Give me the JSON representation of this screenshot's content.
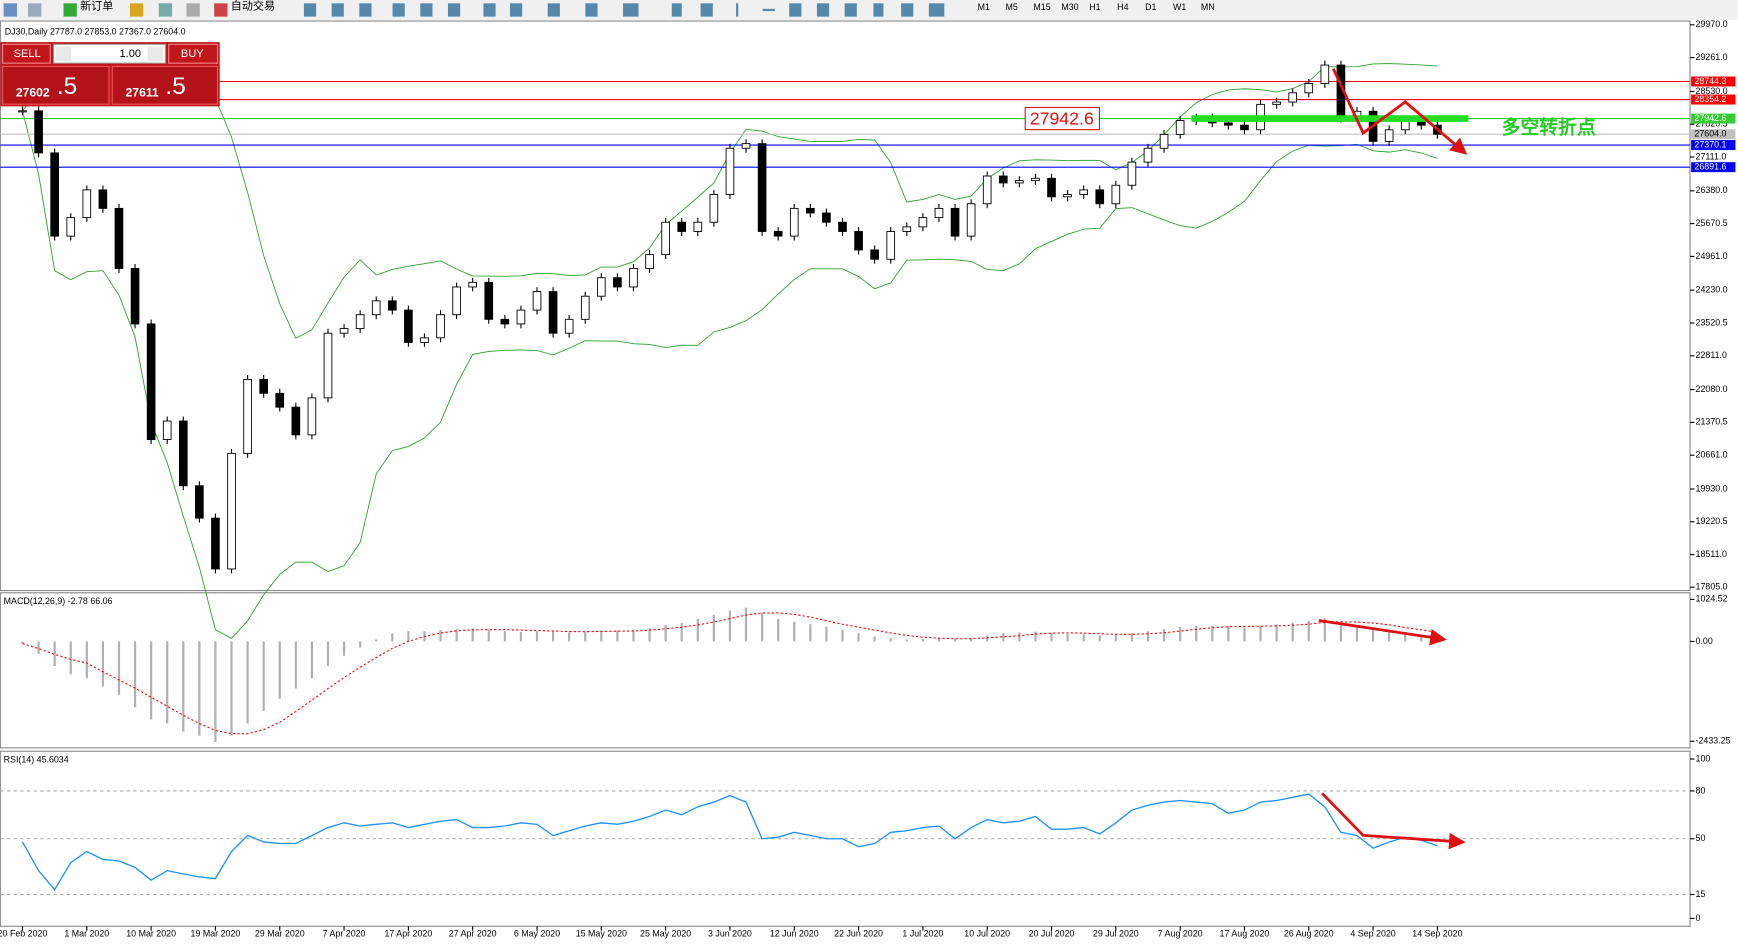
{
  "toolbar": {
    "new_order": "新订单",
    "auto_trading": "自动交易",
    "timeframes": [
      "M1",
      "M5",
      "M15",
      "M30",
      "H1",
      "H4",
      "D1",
      "W1",
      "MN"
    ]
  },
  "trade_panel": {
    "sell": "SELL",
    "lots": "1.00",
    "buy": "BUY",
    "bid_main": "27602",
    "bid_frac": ".5",
    "ask_main": "27611",
    "ask_frac": ".5"
  },
  "chart_data": [
    {
      "type": "candlestick",
      "symbol_line": "DJ30,Daily  27787.0 27853.0 27367.0 27604.0",
      "categories": [
        "20 Feb 2020",
        null,
        null,
        null,
        "1 Mar 2020",
        null,
        null,
        null,
        "10 Mar 2020",
        null,
        null,
        null,
        "19 Mar 2020",
        null,
        null,
        null,
        "29 Mar 2020",
        null,
        null,
        null,
        "7 Apr 2020",
        null,
        null,
        null,
        "17 Apr 2020",
        null,
        null,
        null,
        "27 Apr 2020",
        null,
        null,
        null,
        "6 May 2020",
        null,
        null,
        null,
        "15 May 2020",
        null,
        null,
        null,
        "25 May 2020",
        null,
        null,
        null,
        "3 Jun 2020",
        null,
        null,
        null,
        "12 Jun 2020",
        null,
        null,
        null,
        "22 Jun 2020",
        null,
        null,
        null,
        "1 Jul 2020",
        null,
        null,
        null,
        "10 Jul 2020",
        null,
        null,
        null,
        "20 Jul 2020",
        null,
        null,
        null,
        "29 Jul 2020",
        null,
        null,
        null,
        "7 Aug 2020",
        null,
        null,
        null,
        "17 Aug 2020",
        null,
        null,
        null,
        "26 Aug 2020",
        null,
        null,
        null,
        "4 Sep 2020",
        null,
        null,
        null,
        "14 Sep 2020"
      ],
      "close": [
        28110,
        27200,
        25400,
        25800,
        26400,
        26000,
        24700,
        23500,
        21000,
        21400,
        20000,
        19300,
        18200,
        20700,
        22300,
        22000,
        21700,
        21100,
        21900,
        23300,
        23400,
        23700,
        24000,
        23800,
        23100,
        23200,
        23700,
        24300,
        24400,
        23600,
        23500,
        23800,
        24200,
        23300,
        23600,
        24100,
        24500,
        24300,
        24700,
        25000,
        25700,
        25500,
        25700,
        26300,
        27300,
        27400,
        25500,
        25400,
        26000,
        25900,
        25700,
        25500,
        25100,
        24900,
        25500,
        25600,
        25800,
        26000,
        25400,
        26100,
        26700,
        26550,
        26600,
        26650,
        26250,
        26300,
        26400,
        26100,
        26500,
        27000,
        27300,
        27600,
        27900,
        27950,
        27850,
        27800,
        27700,
        28250,
        28300,
        28500,
        28700,
        29100,
        27950,
        28100,
        27450,
        27700,
        27900,
        27800,
        27604
      ],
      "ylim": [
        17757,
        30028
      ],
      "yticks": [
        {
          "value": 29970,
          "label": "29970.0"
        },
        {
          "value": 29261,
          "label": "29261.0"
        },
        {
          "value": 28530,
          "label": "28530.0"
        },
        27820.5,
        {
          "value": 27111,
          "label": "27111.0"
        },
        {
          "value": 26380,
          "label": "26380.0"
        },
        25670.5,
        {
          "value": 24961,
          "label": "24961.0"
        },
        {
          "value": 24230,
          "label": "24230.0"
        },
        23520.5,
        {
          "value": 22811,
          "label": "22811.0"
        },
        {
          "value": 22080,
          "label": "22080.0"
        },
        21370.5,
        {
          "value": 20661,
          "label": "20661.0"
        },
        {
          "value": 19930,
          "label": "19930.0"
        },
        19220.5,
        {
          "value": 18511,
          "label": "18511.0"
        },
        {
          "value": 17805,
          "label": "17805.0"
        }
      ],
      "levels": [
        {
          "value": 28744.3,
          "color": "#ff0000"
        },
        {
          "value": 28354.2,
          "color": "#ff0000"
        },
        {
          "value": 27942.6,
          "color": "#33cc33"
        },
        {
          "value": 27604,
          "label": "27604.0",
          "color": "#c0c0c0"
        },
        {
          "value": 27370.1,
          "color": "#0000ff"
        },
        {
          "value": 26891.6,
          "color": "#0000ff"
        }
      ],
      "annotation_price": 27942.6,
      "annotation_text": "多空转折点",
      "up_color": "#ffffff",
      "down_color": "#000000",
      "band_color": "#2ca02c"
    },
    {
      "type": "macd",
      "title": "MACD(12,26,9) -2.78 66.06",
      "values": [
        -50,
        -300,
        -600,
        -800,
        -900,
        -1100,
        -1300,
        -1600,
        -1900,
        -2000,
        -2200,
        -2300,
        -2450,
        -2300,
        -2000,
        -1700,
        -1400,
        -1150,
        -900,
        -600,
        -350,
        -150,
        50,
        200,
        250,
        250,
        280,
        300,
        320,
        280,
        250,
        230,
        250,
        260,
        220,
        230,
        260,
        270,
        290,
        320,
        400,
        450,
        550,
        650,
        750,
        820,
        700,
        550,
        480,
        420,
        360,
        280,
        200,
        120,
        80,
        50,
        60,
        80,
        60,
        80,
        150,
        200,
        220,
        240,
        200,
        180,
        170,
        150,
        160,
        200,
        250,
        300,
        350,
        380,
        380,
        370,
        340,
        380,
        420,
        460,
        500,
        560,
        450,
        400,
        340,
        280,
        220,
        160,
        120
      ],
      "ylim": [
        -2595,
        1186
      ],
      "yticks": [
        1024.52,
        {
          "value": 0,
          "label": "0.00"
        },
        -2433.25
      ],
      "color": "#b0b0b0",
      "signal_color": "#ff0000"
    },
    {
      "type": "rsi",
      "title": "RSI(14) 45.6034",
      "values": [
        48,
        30,
        18,
        35,
        42,
        37,
        36,
        32,
        24,
        30,
        28,
        26,
        25,
        42,
        52,
        48,
        47,
        47,
        52,
        57,
        60,
        58,
        59,
        60,
        57,
        59,
        61,
        62,
        57,
        57,
        58,
        60,
        59,
        52,
        55,
        58,
        60,
        59,
        61,
        64,
        68,
        65,
        70,
        73,
        77,
        73,
        50,
        51,
        54,
        52,
        50,
        50,
        45,
        47,
        54,
        55,
        57,
        58,
        50,
        57,
        62,
        60,
        61,
        64,
        56,
        56,
        57,
        53,
        60,
        68,
        71,
        73,
        74,
        73,
        72,
        66,
        68,
        73,
        74,
        76,
        78,
        70,
        54,
        52,
        44,
        48,
        51,
        49,
        45.6034
      ],
      "ylim": [
        -4.9,
        104.9
      ],
      "yticks": [
        100,
        80,
        50,
        15,
        0
      ],
      "grid_levels": [
        80,
        50,
        15
      ],
      "color": "#1e90ff"
    }
  ]
}
